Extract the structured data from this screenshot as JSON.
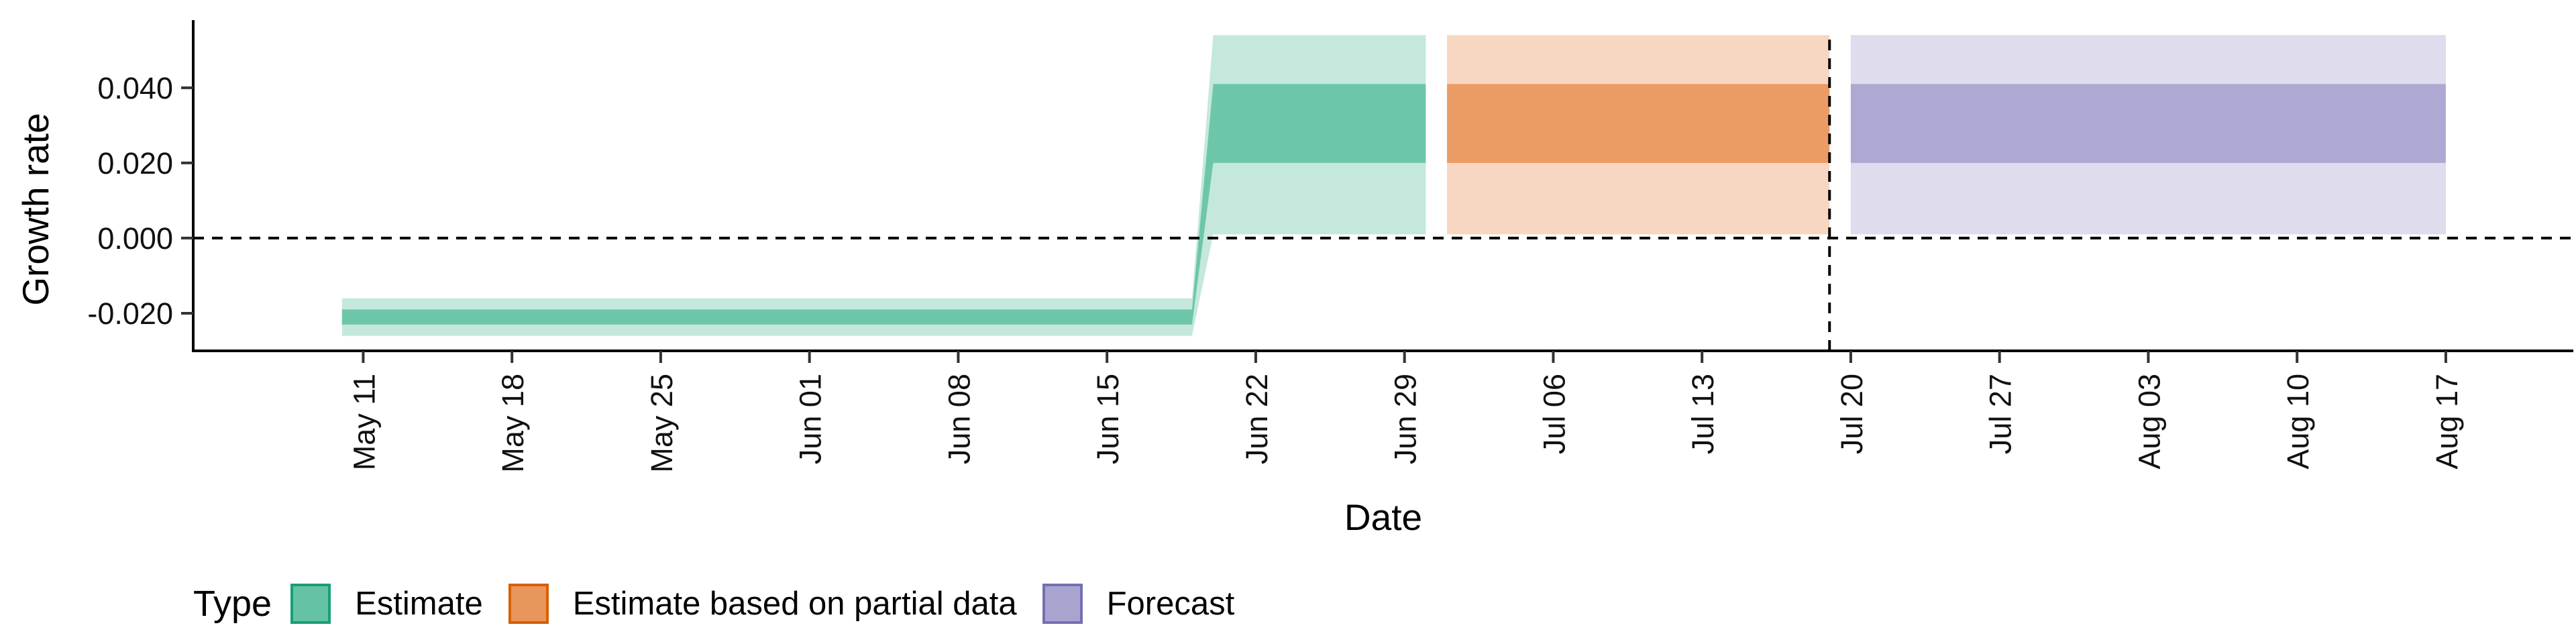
{
  "chart_data": {
    "type": "area",
    "xlabel": "Date",
    "ylabel": "Growth rate",
    "x_axis_type": "date",
    "xlim": [
      "2020-05-03",
      "2020-08-23"
    ],
    "ylim": [
      -0.03,
      0.058
    ],
    "x_ticks": [
      "2020-05-11",
      "2020-05-18",
      "2020-05-25",
      "2020-06-01",
      "2020-06-08",
      "2020-06-15",
      "2020-06-22",
      "2020-06-29",
      "2020-07-06",
      "2020-07-13",
      "2020-07-20",
      "2020-07-27",
      "2020-08-03",
      "2020-08-10",
      "2020-08-17"
    ],
    "x_tick_labels": [
      "May 11",
      "May 18",
      "May 25",
      "Jun 01",
      "Jun 08",
      "Jun 15",
      "Jun 22",
      "Jun 29",
      "Jul 06",
      "Jul 13",
      "Jul 20",
      "Jul 27",
      "Aug 03",
      "Aug 10",
      "Aug 17"
    ],
    "y_ticks": [
      -0.02,
      0.0,
      0.02,
      0.04
    ],
    "y_tick_labels": [
      "-0.020",
      "0.000",
      "0.020",
      "0.040"
    ],
    "reference_lines": {
      "horizontal_y": 0.0,
      "vertical_date": "2020-07-19",
      "style": "dashed"
    },
    "grid": false,
    "legend": {
      "title": "Type",
      "position": "bottom-left"
    },
    "series": [
      {
        "name": "Estimate",
        "color": "#66c2a5",
        "x": [
          "2020-05-10",
          "2020-06-19",
          "2020-06-20",
          "2020-06-30"
        ],
        "outer_lower": [
          -0.026,
          -0.026,
          0.001,
          0.001
        ],
        "inner_lower": [
          -0.023,
          -0.023,
          0.02,
          0.02
        ],
        "median": [
          -0.021,
          -0.021,
          0.03,
          0.03
        ],
        "inner_upper": [
          -0.019,
          -0.019,
          0.041,
          0.041
        ],
        "outer_upper": [
          -0.016,
          -0.016,
          0.054,
          0.054
        ]
      },
      {
        "name": "Estimate based on partial data",
        "color": "#e9965c",
        "x": [
          "2020-07-01",
          "2020-07-19"
        ],
        "outer_lower": [
          0.001,
          0.001
        ],
        "inner_lower": [
          0.02,
          0.02
        ],
        "median": [
          0.03,
          0.03
        ],
        "inner_upper": [
          0.041,
          0.041
        ],
        "outer_upper": [
          0.054,
          0.054
        ]
      },
      {
        "name": "Forecast",
        "color": "#a8a4d0",
        "x": [
          "2020-07-20",
          "2020-08-17"
        ],
        "outer_lower": [
          0.001,
          0.001
        ],
        "inner_lower": [
          0.02,
          0.02
        ],
        "median": [
          0.03,
          0.03
        ],
        "inner_upper": [
          0.041,
          0.041
        ],
        "outer_upper": [
          0.054,
          0.054
        ]
      }
    ]
  }
}
